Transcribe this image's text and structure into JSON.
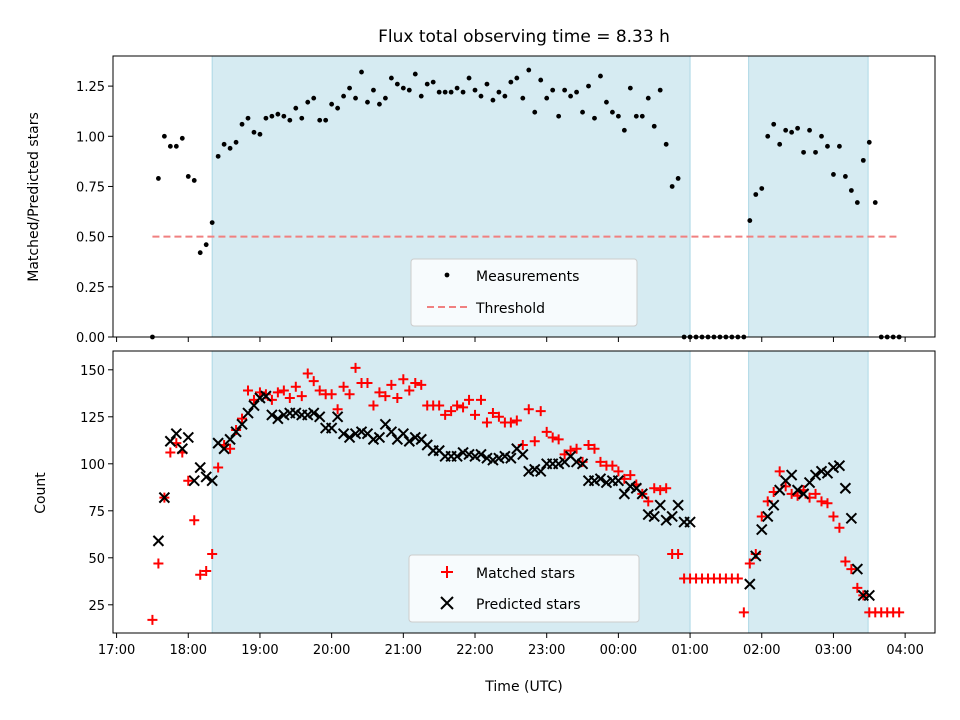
{
  "chart_data": [
    {
      "type": "scatter",
      "title": "Flux total observing time = 8.33 h",
      "xlabel": "",
      "ylabel": "Matched/Predicted stars",
      "xlim": [
        "16:57",
        "04:25"
      ],
      "ylim": [
        0,
        1.4
      ],
      "yticks": [
        "0.00",
        "0.25",
        "0.50",
        "0.75",
        "1.00",
        "1.25"
      ],
      "legend_position": "bottom-center",
      "shaded_intervals": [
        [
          "18:20",
          "01:00"
        ],
        [
          "01:49",
          "03:29"
        ]
      ],
      "threshold": {
        "name": "Threshold",
        "value": 0.5,
        "x_start": "17:30",
        "x_end": "03:55",
        "color": "#f08080"
      },
      "series": [
        {
          "name": "Measurements",
          "color": "#000000",
          "x": [
            "17:30",
            "17:35",
            "17:40",
            "17:45",
            "17:50",
            "17:55",
            "18:00",
            "18:05",
            "18:10",
            "18:15",
            "18:20",
            "18:25",
            "18:30",
            "18:35",
            "18:40",
            "18:45",
            "18:50",
            "18:55",
            "19:00",
            "19:05",
            "19:10",
            "19:15",
            "19:20",
            "19:25",
            "19:30",
            "19:35",
            "19:40",
            "19:45",
            "19:50",
            "19:55",
            "20:00",
            "20:05",
            "20:10",
            "20:15",
            "20:20",
            "20:25",
            "20:30",
            "20:35",
            "20:40",
            "20:45",
            "20:50",
            "20:55",
            "21:00",
            "21:05",
            "21:10",
            "21:15",
            "21:20",
            "21:25",
            "21:30",
            "21:35",
            "21:40",
            "21:45",
            "21:50",
            "21:55",
            "22:00",
            "22:05",
            "22:10",
            "22:15",
            "22:20",
            "22:25",
            "22:30",
            "22:35",
            "22:40",
            "22:45",
            "22:50",
            "22:55",
            "23:00",
            "23:05",
            "23:10",
            "23:15",
            "23:20",
            "23:25",
            "23:30",
            "23:35",
            "23:40",
            "23:45",
            "23:50",
            "23:55",
            "00:00",
            "00:05",
            "00:10",
            "00:15",
            "00:20",
            "00:25",
            "00:30",
            "00:35",
            "00:40",
            "00:45",
            "00:50",
            "00:55",
            "01:00",
            "01:05",
            "01:10",
            "01:15",
            "01:20",
            "01:25",
            "01:30",
            "01:35",
            "01:40",
            "01:45",
            "01:50",
            "01:55",
            "02:00",
            "02:05",
            "02:10",
            "02:15",
            "02:20",
            "02:25",
            "02:30",
            "02:35",
            "02:40",
            "02:45",
            "02:50",
            "02:55",
            "03:00",
            "03:05",
            "03:10",
            "03:15",
            "03:20",
            "03:25",
            "03:30",
            "03:35",
            "03:40",
            "03:45",
            "03:50",
            "03:55"
          ],
          "y": [
            0.0,
            0.79,
            1.0,
            0.95,
            0.95,
            0.99,
            0.8,
            0.78,
            0.42,
            0.46,
            0.57,
            0.9,
            0.96,
            0.94,
            0.97,
            1.06,
            1.09,
            1.02,
            1.01,
            1.09,
            1.1,
            1.11,
            1.1,
            1.08,
            1.14,
            1.09,
            1.17,
            1.19,
            1.08,
            1.08,
            1.16,
            1.14,
            1.2,
            1.24,
            1.19,
            1.32,
            1.17,
            1.23,
            1.16,
            1.19,
            1.29,
            1.26,
            1.24,
            1.23,
            1.31,
            1.2,
            1.26,
            1.27,
            1.22,
            1.22,
            1.22,
            1.24,
            1.22,
            1.29,
            1.23,
            1.2,
            1.26,
            1.18,
            1.22,
            1.2,
            1.27,
            1.29,
            1.19,
            1.33,
            1.12,
            1.28,
            1.19,
            1.23,
            1.1,
            1.23,
            1.2,
            1.22,
            1.12,
            1.25,
            1.09,
            1.3,
            1.17,
            1.12,
            1.1,
            1.03,
            1.24,
            1.1,
            1.1,
            1.19,
            1.05,
            1.23,
            0.96,
            0.75,
            0.79,
            0.0,
            0.0,
            0.0,
            0.0,
            0.0,
            0.0,
            0.0,
            0.0,
            0.0,
            0.0,
            0.0,
            0.58,
            0.71,
            0.74,
            1.0,
            1.06,
            0.96,
            1.03,
            1.02,
            1.04,
            0.92,
            1.03,
            0.92,
            1.0,
            0.95,
            0.81,
            0.95,
            0.8,
            0.73,
            0.67,
            0.88,
            0.97,
            0.67,
            0.0,
            0.0,
            0.0,
            0.0
          ]
        }
      ]
    },
    {
      "type": "scatter",
      "title": "",
      "xlabel": "Time (UTC)",
      "ylabel": "Count",
      "xlim": [
        "16:57",
        "04:25"
      ],
      "ylim": [
        10,
        160
      ],
      "yticks": [
        "25",
        "50",
        "75",
        "100",
        "125",
        "150"
      ],
      "xticks": [
        "17:00",
        "18:00",
        "19:00",
        "20:00",
        "21:00",
        "22:00",
        "23:00",
        "00:00",
        "01:00",
        "02:00",
        "03:00",
        "04:00"
      ],
      "legend_position": "bottom-center",
      "shaded_intervals": [
        [
          "18:20",
          "01:00"
        ],
        [
          "01:49",
          "03:29"
        ]
      ],
      "series": [
        {
          "name": "Matched stars",
          "marker": "+",
          "color": "#ff0000",
          "x": [
            "17:30",
            "17:35",
            "17:40",
            "17:45",
            "17:50",
            "17:55",
            "18:00",
            "18:05",
            "18:10",
            "18:15",
            "18:20",
            "18:25",
            "18:30",
            "18:35",
            "18:40",
            "18:45",
            "18:50",
            "18:55",
            "19:00",
            "19:05",
            "19:10",
            "19:15",
            "19:20",
            "19:25",
            "19:30",
            "19:35",
            "19:40",
            "19:45",
            "19:50",
            "19:55",
            "20:00",
            "20:05",
            "20:10",
            "20:15",
            "20:20",
            "20:25",
            "20:30",
            "20:35",
            "20:40",
            "20:45",
            "20:50",
            "20:55",
            "21:00",
            "21:05",
            "21:10",
            "21:15",
            "21:20",
            "21:25",
            "21:30",
            "21:35",
            "21:40",
            "21:45",
            "21:50",
            "21:55",
            "22:00",
            "22:05",
            "22:10",
            "22:15",
            "22:20",
            "22:25",
            "22:30",
            "22:35",
            "22:40",
            "22:45",
            "22:50",
            "22:55",
            "23:00",
            "23:05",
            "23:10",
            "23:15",
            "23:20",
            "23:25",
            "23:30",
            "23:35",
            "23:40",
            "23:45",
            "23:50",
            "23:55",
            "00:00",
            "00:05",
            "00:10",
            "00:15",
            "00:20",
            "00:25",
            "00:30",
            "00:35",
            "00:40",
            "00:45",
            "00:50",
            "00:55",
            "01:00",
            "01:05",
            "01:10",
            "01:15",
            "01:20",
            "01:25",
            "01:30",
            "01:35",
            "01:40",
            "01:45",
            "01:50",
            "01:55",
            "02:00",
            "02:05",
            "02:10",
            "02:15",
            "02:20",
            "02:25",
            "02:30",
            "02:35",
            "02:40",
            "02:45",
            "02:50",
            "02:55",
            "03:00",
            "03:05",
            "03:10",
            "03:15",
            "03:20",
            "03:25",
            "03:30",
            "03:35",
            "03:40",
            "03:45",
            "03:50",
            "03:55"
          ],
          "y": [
            17,
            47,
            82,
            106,
            111,
            106,
            91,
            70,
            41,
            43,
            52,
            98,
            110,
            108,
            118,
            124,
            139,
            134,
            138,
            137,
            134,
            138,
            139,
            135,
            141,
            136,
            148,
            144,
            139,
            137,
            137,
            129,
            141,
            137,
            151,
            143,
            143,
            131,
            138,
            136,
            142,
            135,
            145,
            139,
            143,
            142,
            131,
            131,
            131,
            126,
            128,
            131,
            130,
            134,
            126,
            134,
            122,
            127,
            125,
            122,
            122,
            123,
            110,
            129,
            112,
            128,
            117,
            114,
            113,
            105,
            107,
            108,
            101,
            110,
            108,
            101,
            99,
            99,
            96,
            92,
            94,
            89,
            84,
            80,
            87,
            86,
            87,
            52,
            52,
            39,
            39,
            39,
            39,
            39,
            39,
            39,
            39,
            39,
            39,
            21,
            47,
            52,
            72,
            80,
            85,
            96,
            88,
            84,
            83,
            86,
            82,
            84,
            80,
            79,
            72,
            66,
            48,
            44,
            34,
            30,
            21,
            21,
            21,
            21,
            21,
            21
          ]
        },
        {
          "name": "Predicted stars",
          "marker": "x",
          "color": "#000000",
          "x": [
            "17:35",
            "17:40",
            "17:45",
            "17:50",
            "17:55",
            "18:00",
            "18:05",
            "18:10",
            "18:15",
            "18:20",
            "18:25",
            "18:30",
            "18:35",
            "18:40",
            "18:45",
            "18:50",
            "18:55",
            "19:00",
            "19:05",
            "19:10",
            "19:15",
            "19:20",
            "19:25",
            "19:30",
            "19:35",
            "19:40",
            "19:45",
            "19:50",
            "19:55",
            "20:00",
            "20:05",
            "20:10",
            "20:15",
            "20:20",
            "20:25",
            "20:30",
            "20:35",
            "20:40",
            "20:45",
            "20:50",
            "20:55",
            "21:00",
            "21:05",
            "21:10",
            "21:15",
            "21:20",
            "21:25",
            "21:30",
            "21:35",
            "21:40",
            "21:45",
            "21:50",
            "21:55",
            "22:00",
            "22:05",
            "22:10",
            "22:15",
            "22:20",
            "22:25",
            "22:30",
            "22:35",
            "22:40",
            "22:45",
            "22:50",
            "22:55",
            "23:00",
            "23:05",
            "23:10",
            "23:15",
            "23:20",
            "23:25",
            "23:30",
            "23:35",
            "23:40",
            "23:45",
            "23:50",
            "23:55",
            "00:00",
            "00:05",
            "00:10",
            "00:15",
            "00:20",
            "00:25",
            "00:30",
            "00:35",
            "00:40",
            "00:45",
            "00:50",
            "00:55",
            "01:00",
            "01:50",
            "01:55",
            "02:00",
            "02:05",
            "02:10",
            "02:15",
            "02:20",
            "02:25",
            "02:30",
            "02:35",
            "02:40",
            "02:45",
            "02:50",
            "02:55",
            "03:00",
            "03:05",
            "03:10",
            "03:15",
            "03:20",
            "03:25",
            "03:30"
          ],
          "y": [
            59,
            82,
            112,
            116,
            108,
            114,
            91,
            98,
            93,
            91,
            111,
            108,
            113,
            117,
            121,
            127,
            131,
            135,
            136,
            126,
            124,
            126,
            127,
            127,
            126,
            126,
            127,
            125,
            119,
            119,
            125,
            116,
            114,
            116,
            117,
            116,
            113,
            114,
            121,
            117,
            113,
            116,
            112,
            114,
            113,
            110,
            107,
            107,
            104,
            104,
            104,
            106,
            105,
            104,
            105,
            103,
            102,
            103,
            104,
            103,
            108,
            105,
            96,
            97,
            96,
            100,
            100,
            100,
            101,
            104,
            101,
            100,
            91,
            91,
            92,
            90,
            91,
            91,
            84,
            88,
            87,
            84,
            73,
            72,
            78,
            70,
            72,
            78,
            69,
            69,
            36,
            51,
            65,
            72,
            78,
            86,
            91,
            94,
            86,
            84,
            90,
            94,
            96,
            95,
            98,
            99,
            87,
            71,
            44,
            30,
            30
          ]
        }
      ]
    }
  ]
}
